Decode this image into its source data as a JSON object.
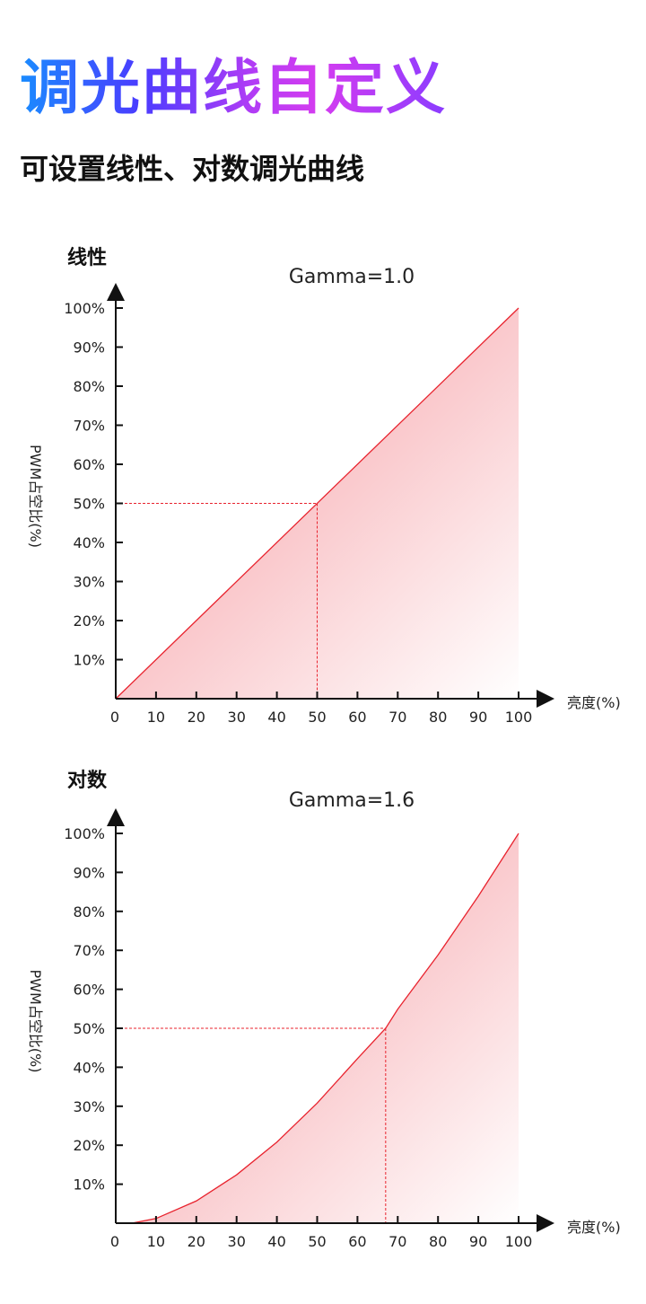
{
  "title": "调光曲线自定义",
  "subtitle": "可设置线性、对数调光曲线",
  "colors": {
    "title_gradient": [
      "#1a8cff",
      "#4a3cff",
      "#d53cf0",
      "#8a3cff"
    ],
    "curve": "#e8232e",
    "fill": "#f7a8ad"
  },
  "chart_data": [
    {
      "type": "area",
      "section_label": "线性",
      "title": "Gamma=1.0",
      "xlabel": "亮度(%)",
      "ylabel": "PWM占空比(%)",
      "xlim": [
        0,
        100
      ],
      "ylim": [
        0,
        100
      ],
      "x_ticks": [
        "0",
        "10",
        "20",
        "30",
        "40",
        "50",
        "60",
        "70",
        "80",
        "90",
        "100"
      ],
      "y_ticks": [
        "10%",
        "20%",
        "30%",
        "40%",
        "50%",
        "60%",
        "70%",
        "80%",
        "90%",
        "100%"
      ],
      "points": [
        [
          0,
          0
        ],
        [
          100,
          100
        ]
      ],
      "marker": {
        "x": 50,
        "y": 50
      }
    },
    {
      "type": "area",
      "section_label": "对数",
      "title": "Gamma=1.6",
      "xlabel": "亮度(%)",
      "ylabel": "PWM占空比(%)",
      "xlim": [
        0,
        100
      ],
      "ylim": [
        0,
        100
      ],
      "x_ticks": [
        "0",
        "10",
        "20",
        "30",
        "40",
        "50",
        "60",
        "70",
        "80",
        "90",
        "100"
      ],
      "y_ticks": [
        "10%",
        "20%",
        "30%",
        "40%",
        "50%",
        "60%",
        "70%",
        "80%",
        "90%",
        "100%"
      ],
      "points": [
        [
          4,
          0
        ],
        [
          10,
          1.2
        ],
        [
          20,
          5.7
        ],
        [
          30,
          12.4
        ],
        [
          40,
          20.8
        ],
        [
          50,
          30.8
        ],
        [
          60,
          42.2
        ],
        [
          67,
          50
        ],
        [
          70,
          54.9
        ],
        [
          80,
          68.8
        ],
        [
          90,
          83.9
        ],
        [
          100,
          100
        ]
      ],
      "marker": {
        "x": 67,
        "y": 50
      }
    }
  ]
}
